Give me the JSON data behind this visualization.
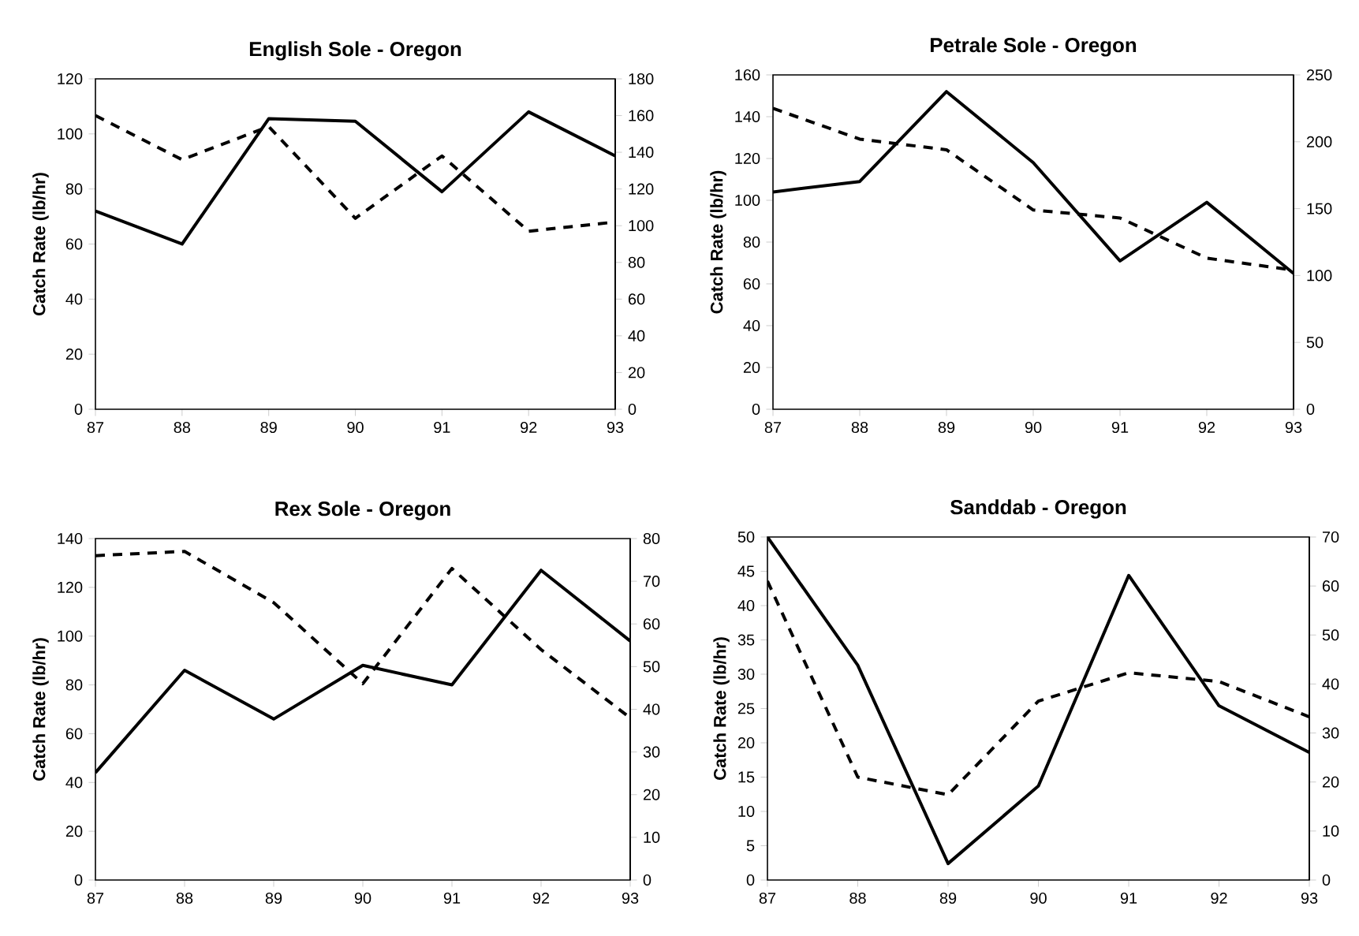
{
  "chart_data": [
    {
      "type": "line",
      "title": "English Sole - Oregon",
      "ylabel": "Catch Rate (lb/hr)",
      "x": [
        87,
        88,
        89,
        90,
        91,
        92,
        93
      ],
      "xlim": [
        87,
        93
      ],
      "xticks": [
        87,
        88,
        89,
        90,
        91,
        92,
        93
      ],
      "ylim": [
        0,
        120
      ],
      "yticks": [
        0,
        20,
        40,
        60,
        80,
        100,
        120
      ],
      "y2lim": [
        0,
        180
      ],
      "y2ticks": [
        0,
        20,
        40,
        60,
        80,
        100,
        120,
        140,
        160,
        180
      ],
      "grid": false,
      "series": [
        {
          "color": "#000000",
          "line_style": "solid",
          "values": [
            72,
            60,
            105.5,
            104.6,
            79,
            108,
            92
          ]
        },
        {
          "color": "#000000",
          "line_style": "dashed",
          "axis": "y2",
          "values": [
            160,
            136,
            154,
            104,
            138,
            97,
            102
          ]
        }
      ]
    },
    {
      "type": "line",
      "title": "Petrale Sole - Oregon",
      "ylabel": "Catch Rate (lb/hr)",
      "x": [
        87,
        88,
        89,
        90,
        91,
        92,
        93
      ],
      "xlim": [
        87,
        93
      ],
      "xticks": [
        87,
        88,
        89,
        90,
        91,
        92,
        93
      ],
      "ylim": [
        0,
        160
      ],
      "yticks": [
        0,
        20,
        40,
        60,
        80,
        100,
        120,
        140,
        160
      ],
      "y2lim": [
        0,
        250
      ],
      "y2ticks": [
        0,
        50,
        100,
        150,
        200,
        250
      ],
      "grid": false,
      "series": [
        {
          "color": "#000000",
          "line_style": "solid",
          "values": [
            104,
            109,
            152,
            118,
            71,
            99,
            65
          ]
        },
        {
          "color": "#000000",
          "line_style": "dashed",
          "axis": "y2",
          "values": [
            225,
            202,
            194,
            149,
            143,
            113,
            104
          ]
        }
      ]
    },
    {
      "type": "line",
      "title": "Rex Sole - Oregon",
      "ylabel": "Catch Rate (lb/hr)",
      "x": [
        87,
        88,
        89,
        90,
        91,
        92,
        93
      ],
      "xlim": [
        87,
        93
      ],
      "xticks": [
        87,
        88,
        89,
        90,
        91,
        92,
        93
      ],
      "ylim": [
        0,
        140
      ],
      "yticks": [
        0,
        20,
        40,
        60,
        80,
        100,
        120,
        140
      ],
      "y2lim": [
        0,
        80
      ],
      "y2ticks": [
        0,
        10,
        20,
        30,
        40,
        50,
        60,
        70,
        80
      ],
      "grid": false,
      "series": [
        {
          "color": "#000000",
          "line_style": "solid",
          "values": [
            44,
            86,
            66,
            88,
            80,
            127,
            98
          ]
        },
        {
          "color": "#000000",
          "line_style": "dashed",
          "axis": "y2",
          "values": [
            76,
            77,
            65,
            46,
            73,
            54,
            38
          ]
        }
      ]
    },
    {
      "type": "line",
      "title": "Sanddab - Oregon",
      "ylabel": "Catch Rate (lb/hr)",
      "x": [
        87,
        88,
        89,
        90,
        91,
        92,
        93
      ],
      "xlim": [
        87,
        93
      ],
      "xticks": [
        87,
        88,
        89,
        90,
        91,
        92,
        93
      ],
      "ylim": [
        0,
        50
      ],
      "yticks": [
        0,
        5,
        10,
        15,
        20,
        25,
        30,
        35,
        40,
        45,
        50
      ],
      "y2lim": [
        0,
        70
      ],
      "y2ticks": [
        0,
        10,
        20,
        30,
        40,
        50,
        60,
        70
      ],
      "grid": false,
      "series": [
        {
          "color": "#000000",
          "line_style": "solid",
          "values": [
            50,
            31.3,
            2.4,
            13.7,
            44.4,
            25.4,
            18.6
          ]
        },
        {
          "color": "#000000",
          "line_style": "dashed",
          "axis": "y2",
          "values": [
            61,
            21,
            17.4,
            36.5,
            42.3,
            40.5,
            33.3
          ]
        }
      ]
    }
  ]
}
